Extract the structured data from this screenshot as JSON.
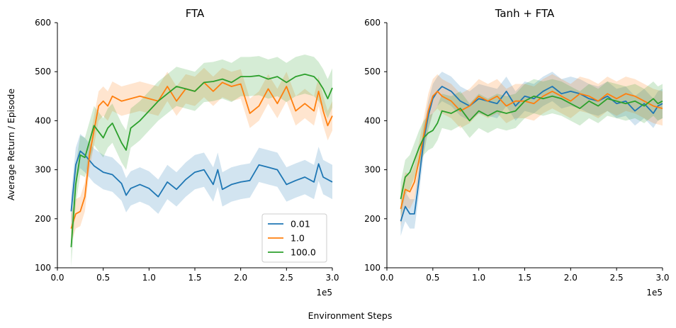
{
  "figure": {
    "ylabel": "Average Return / Episode",
    "xlabel": "Environment Steps",
    "series_colors": {
      "0.01": "#1f77b4",
      "1.0": "#ff7f0e",
      "100.0": "#2ca02c"
    }
  },
  "chart_data": [
    {
      "type": "line",
      "title": "FTA",
      "xlim": [
        0,
        300000
      ],
      "ylim": [
        100,
        600
      ],
      "x_ticks": [
        0,
        50000,
        100000,
        150000,
        200000,
        250000,
        300000
      ],
      "x_tick_labels": [
        "0.0",
        "0.5",
        "1.0",
        "1.5",
        "2.0",
        "2.5",
        "3.0"
      ],
      "x_offset_label": "1e5",
      "y_ticks": [
        100,
        200,
        300,
        400,
        500,
        600
      ],
      "y_tick_labels": [
        "100",
        "200",
        "300",
        "400",
        "500",
        "600"
      ],
      "legend": {
        "placement": "lower-right",
        "entries": [
          "0.01",
          "1.0",
          "100.0"
        ]
      },
      "series": [
        {
          "name": "0.01",
          "color": "#1f77b4",
          "band": 35,
          "x": [
            15000,
            20000,
            25000,
            30000,
            40000,
            50000,
            60000,
            70000,
            75000,
            80000,
            90000,
            100000,
            110000,
            120000,
            130000,
            140000,
            150000,
            160000,
            170000,
            175000,
            180000,
            190000,
            200000,
            210000,
            220000,
            230000,
            240000,
            250000,
            260000,
            270000,
            280000,
            285000,
            290000,
            300000
          ],
          "y": [
            215,
            310,
            338,
            330,
            308,
            295,
            290,
            272,
            248,
            262,
            270,
            262,
            245,
            275,
            260,
            280,
            295,
            300,
            270,
            300,
            260,
            270,
            275,
            278,
            310,
            305,
            300,
            270,
            278,
            285,
            275,
            312,
            285,
            275
          ]
        },
        {
          "name": "1.0",
          "color": "#ff7f0e",
          "band": 30,
          "x": [
            15000,
            20000,
            25000,
            30000,
            35000,
            40000,
            45000,
            50000,
            55000,
            60000,
            70000,
            80000,
            90000,
            100000,
            110000,
            120000,
            130000,
            140000,
            150000,
            160000,
            170000,
            180000,
            190000,
            200000,
            210000,
            220000,
            230000,
            240000,
            250000,
            260000,
            270000,
            280000,
            285000,
            290000,
            295000,
            300000
          ],
          "y": [
            180,
            210,
            215,
            245,
            330,
            380,
            430,
            440,
            430,
            450,
            440,
            445,
            450,
            445,
            440,
            470,
            440,
            465,
            460,
            478,
            460,
            478,
            470,
            475,
            415,
            430,
            465,
            435,
            470,
            420,
            435,
            420,
            460,
            420,
            390,
            410
          ]
        },
        {
          "name": "100.0",
          "color": "#2ca02c",
          "band": 40,
          "x": [
            15000,
            20000,
            25000,
            30000,
            40000,
            50000,
            55000,
            60000,
            70000,
            75000,
            80000,
            90000,
            100000,
            110000,
            120000,
            130000,
            140000,
            150000,
            160000,
            170000,
            180000,
            190000,
            200000,
            210000,
            220000,
            230000,
            240000,
            250000,
            260000,
            270000,
            280000,
            285000,
            290000,
            295000,
            300000
          ],
          "y": [
            142,
            270,
            330,
            325,
            390,
            365,
            385,
            395,
            355,
            340,
            385,
            400,
            420,
            440,
            455,
            470,
            465,
            460,
            478,
            480,
            485,
            478,
            490,
            490,
            492,
            485,
            490,
            478,
            490,
            495,
            490,
            480,
            465,
            445,
            467
          ]
        }
      ]
    },
    {
      "type": "line",
      "title": "Tanh + FTA",
      "xlim": [
        0,
        300000
      ],
      "ylim": [
        100,
        600
      ],
      "x_ticks": [
        0,
        50000,
        100000,
        150000,
        200000,
        250000,
        300000
      ],
      "x_tick_labels": [
        "0.0",
        "0.5",
        "1.0",
        "1.5",
        "2.0",
        "2.5",
        "3.0"
      ],
      "x_offset_label": "1e5",
      "y_ticks": [
        100,
        200,
        300,
        400,
        500,
        600
      ],
      "y_tick_labels": [
        "100",
        "200",
        "300",
        "400",
        "500",
        "600"
      ],
      "series": [
        {
          "name": "0.01",
          "color": "#1f77b4",
          "band": 30,
          "x": [
            15000,
            20000,
            25000,
            30000,
            35000,
            40000,
            45000,
            50000,
            55000,
            60000,
            70000,
            80000,
            90000,
            100000,
            110000,
            120000,
            130000,
            140000,
            150000,
            160000,
            170000,
            180000,
            190000,
            200000,
            210000,
            220000,
            230000,
            240000,
            250000,
            260000,
            270000,
            280000,
            290000,
            295000,
            300000
          ],
          "y": [
            195,
            225,
            210,
            210,
            280,
            360,
            410,
            445,
            460,
            470,
            460,
            440,
            430,
            445,
            440,
            435,
            460,
            430,
            450,
            445,
            460,
            470,
            455,
            460,
            455,
            445,
            440,
            450,
            435,
            440,
            420,
            435,
            415,
            430,
            435
          ]
        },
        {
          "name": "1.0",
          "color": "#ff7f0e",
          "band": 35,
          "x": [
            15000,
            20000,
            25000,
            30000,
            35000,
            40000,
            45000,
            50000,
            55000,
            60000,
            70000,
            80000,
            90000,
            100000,
            110000,
            120000,
            130000,
            140000,
            150000,
            160000,
            170000,
            180000,
            190000,
            200000,
            210000,
            220000,
            230000,
            240000,
            250000,
            260000,
            270000,
            280000,
            290000,
            300000
          ],
          "y": [
            220,
            260,
            255,
            275,
            320,
            370,
            420,
            450,
            460,
            450,
            440,
            420,
            430,
            450,
            440,
            450,
            430,
            440,
            440,
            435,
            450,
            460,
            450,
            440,
            455,
            450,
            440,
            455,
            445,
            455,
            450,
            440,
            430,
            425
          ]
        },
        {
          "name": "100.0",
          "color": "#2ca02c",
          "band": 35,
          "x": [
            15000,
            20000,
            25000,
            30000,
            35000,
            40000,
            45000,
            50000,
            55000,
            60000,
            70000,
            80000,
            90000,
            100000,
            110000,
            120000,
            130000,
            140000,
            150000,
            160000,
            170000,
            180000,
            190000,
            200000,
            210000,
            220000,
            230000,
            240000,
            250000,
            260000,
            270000,
            280000,
            290000,
            295000,
            300000
          ],
          "y": [
            240,
            285,
            295,
            320,
            345,
            365,
            375,
            380,
            395,
            420,
            415,
            425,
            400,
            420,
            410,
            420,
            415,
            420,
            440,
            450,
            445,
            450,
            445,
            435,
            425,
            440,
            430,
            445,
            440,
            435,
            440,
            430,
            445,
            435,
            440
          ]
        }
      ]
    }
  ]
}
